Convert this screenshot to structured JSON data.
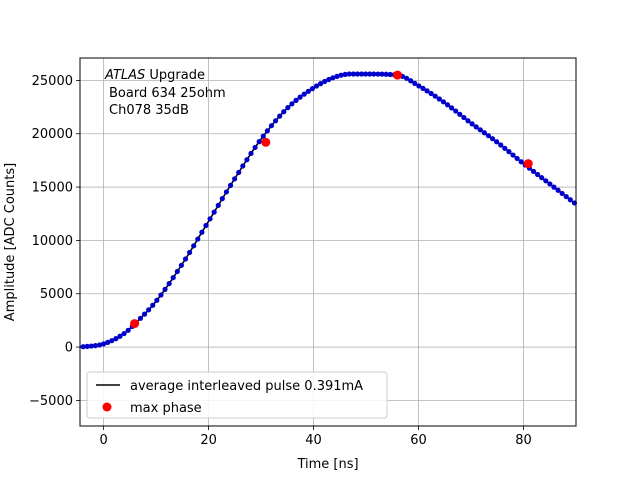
{
  "chart_data": {
    "type": "line",
    "xlabel": "Time [ns]",
    "ylabel": "Amplitude [ADC Counts]",
    "xlim": [
      -4.5,
      90
    ],
    "ylim": [
      -7400,
      27100
    ],
    "xticks": [
      0,
      20,
      40,
      60,
      80
    ],
    "yticks": [
      -5000,
      0,
      5000,
      10000,
      15000,
      20000,
      25000
    ],
    "xtick_labels": [
      "0",
      "20",
      "40",
      "60",
      "80"
    ],
    "ytick_labels": [
      "−5000",
      "0",
      "5000",
      "10000",
      "15000",
      "20000",
      "25000"
    ],
    "grid": true,
    "legend_position": "lower-left",
    "annotation": {
      "italic": "ATLAS",
      "rest": " Upgrade",
      "line2": "Board 634 25ohm",
      "line3": "Ch078 35dB"
    },
    "pulse_sample_step_ns": 0.78,
    "colors": {
      "line": "#000000",
      "samples": "#0000cc",
      "max_phase": "#ff0000"
    },
    "series": [
      {
        "name": "average interleaved pulse 0.391mA",
        "kind": "line",
        "x": [
          -4.5,
          0,
          4,
          6,
          10,
          15,
          20,
          25,
          30,
          35,
          40,
          44,
          47,
          50,
          56,
          60,
          65,
          70,
          75,
          80,
          85,
          90
        ],
        "y": [
          0,
          300,
          1300,
          2200,
          4300,
          7800,
          11800,
          15800,
          19500,
          22400,
          24300,
          25300,
          25600,
          25600,
          25500,
          24500,
          22900,
          21000,
          19200,
          17200,
          15300,
          13400
        ]
      },
      {
        "name": "max phase",
        "kind": "markers",
        "x": [
          5.9,
          30.9,
          56.0,
          80.9
        ],
        "y": [
          2200,
          19200,
          25500,
          17200
        ]
      }
    ]
  }
}
